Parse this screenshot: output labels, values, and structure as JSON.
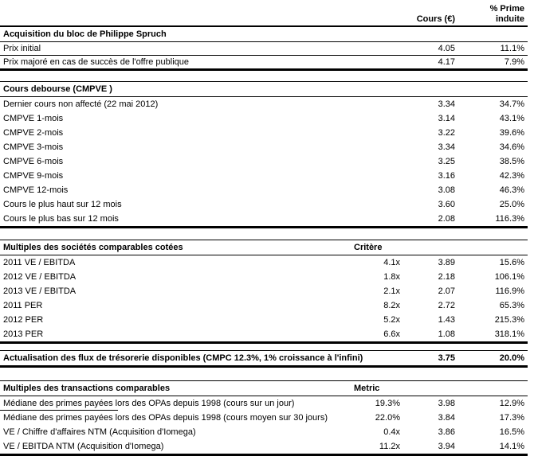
{
  "header": {
    "cours_label": "Cours (€)",
    "prime_label_line1": "% Prime",
    "prime_label_line2": "induite"
  },
  "sections": [
    {
      "title": "Acquisition du bloc de Philippe Spruch",
      "rows": [
        {
          "label": "Prix initial",
          "cours": "4.05",
          "prime": "11.1%"
        },
        {
          "label": "Prix majoré en cas de succès de l'offre publique",
          "cours": "4.17",
          "prime": "7.9%"
        }
      ]
    },
    {
      "title": "Cours debourse (CMPVE )",
      "rows": [
        {
          "label": "Dernier cours non affecté (22 mai 2012)",
          "cours": "3.34",
          "prime": "34.7%"
        },
        {
          "label": "CMPVE 1-mois",
          "cours": "3.14",
          "prime": "43.1%"
        },
        {
          "label": "CMPVE 2-mois",
          "cours": "3.22",
          "prime": "39.6%"
        },
        {
          "label": "CMPVE 3-mois",
          "cours": "3.34",
          "prime": "34.6%"
        },
        {
          "label": "CMPVE 6-mois",
          "cours": "3.25",
          "prime": "38.5%"
        },
        {
          "label": "CMPVE 9-mois",
          "cours": "3.16",
          "prime": "42.3%"
        },
        {
          "label": "CMPVE 12-mois",
          "cours": "3.08",
          "prime": "46.3%"
        },
        {
          "label": "Cours le plus haut sur 12 mois",
          "cours": "3.60",
          "prime": "25.0%"
        },
        {
          "label": "Cours le plus bas sur 12 mois",
          "cours": "2.08",
          "prime": "116.3%"
        }
      ]
    },
    {
      "title": "Multiples des sociétés comparables cotées",
      "criteria_header": "Critère",
      "rows": [
        {
          "label": "2011 VE / EBITDA",
          "critere": "4.1x",
          "cours": "3.89",
          "prime": "15.6%"
        },
        {
          "label": "2012 VE / EBITDA",
          "critere": "1.8x",
          "cours": "2.18",
          "prime": "106.1%"
        },
        {
          "label": "2013 VE / EBITDA",
          "critere": "2.1x",
          "cours": "2.07",
          "prime": "116.9%"
        },
        {
          "label": "2011 PER",
          "critere": "8.2x",
          "cours": "2.72",
          "prime": "65.3%"
        },
        {
          "label": "2012 PER",
          "critere": "5.2x",
          "cours": "1.43",
          "prime": "215.3%"
        },
        {
          "label": "2013 PER",
          "critere": "6.6x",
          "cours": "1.08",
          "prime": "318.1%"
        }
      ]
    },
    {
      "title": "Actualisation des flux de trésorerie disponibles (CMPC 12.3%, 1% croissance à l'infini)",
      "cours": "3.75",
      "prime": "20.0%"
    },
    {
      "title": "Multiples des transactions comparables",
      "criteria_header": "Metric",
      "rows": [
        {
          "label": "Médiane des primes payées lors des OPAs depuis 1998 (cours sur un jour)",
          "metric": "19.3%",
          "cours": "3.98",
          "prime": "12.9%"
        },
        {
          "label": "Médiane des primes payées lors des OPAs depuis 1998 (cours moyen sur 30 jours)",
          "metric": "22.0%",
          "cours": "3.84",
          "prime": "17.3%"
        },
        {
          "label": "VE / Chiffre d'affaires NTM (Acquisition d'Iomega)",
          "metric": "0.4x",
          "cours": "3.86",
          "prime": "16.5%"
        },
        {
          "label": "VE / EBITDA NTM (Acquisition d'Iomega)",
          "metric": "11.2x",
          "cours": "3.94",
          "prime": "14.1%"
        }
      ]
    }
  ]
}
